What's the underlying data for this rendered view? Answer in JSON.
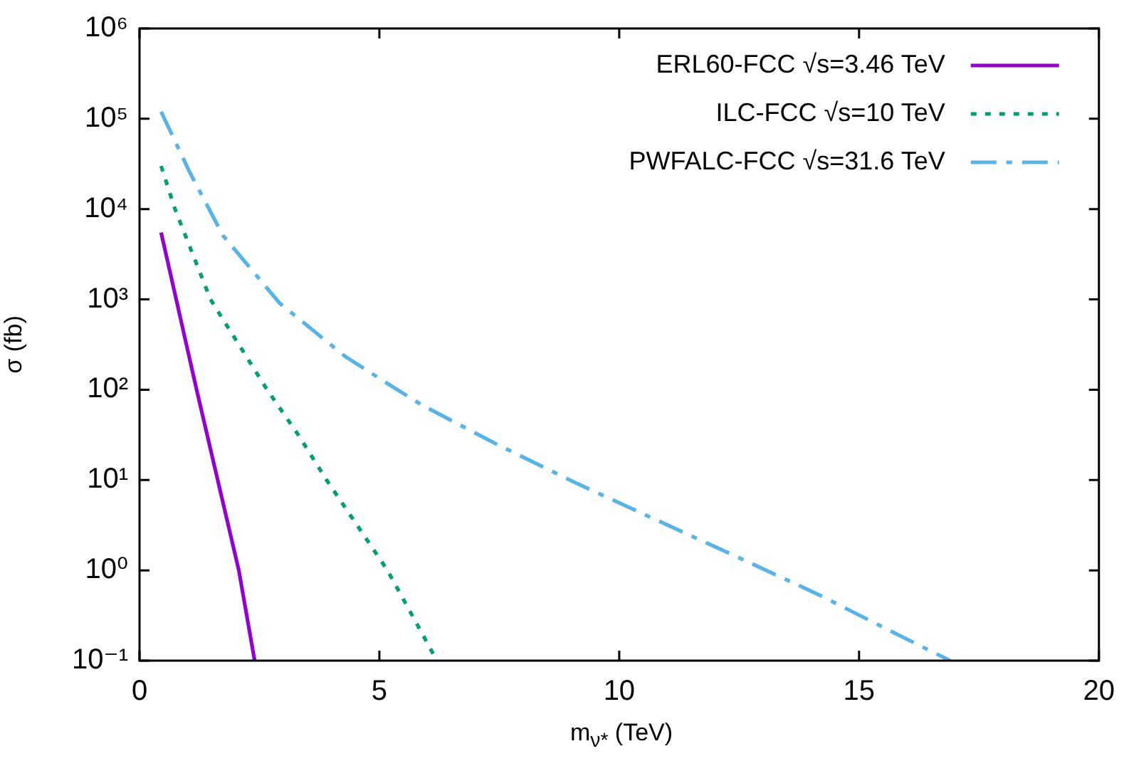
{
  "chart_data": {
    "type": "line",
    "xlabel": "m$_{ν*}$ (TeV)",
    "ylabel": "σ (fb)",
    "xlim": [
      0,
      20
    ],
    "xticks": [
      0,
      5,
      10,
      15,
      20
    ],
    "ylim": [
      0.1,
      1000000
    ],
    "yticks": [
      {
        "value": 0.1,
        "label": "10⁻¹"
      },
      {
        "value": 1,
        "label": "10⁰"
      },
      {
        "value": 10,
        "label": "10¹"
      },
      {
        "value": 100,
        "label": "10²"
      },
      {
        "value": 1000,
        "label": "10³"
      },
      {
        "value": 10000,
        "label": "10⁴"
      },
      {
        "value": 100000,
        "label": "10⁵"
      },
      {
        "value": 1000000,
        "label": "10⁶"
      }
    ],
    "log": "y",
    "grid": false,
    "legend": "top right",
    "marker": "none",
    "series": [
      {
        "name": "ERL60-FCC √s=3.46 TeV",
        "color": "#9400d3",
        "line_style": "solid",
        "x": [
          0.45,
          1.19,
          1.63,
          2.07,
          2.4
        ],
        "values": [
          5500,
          100,
          10,
          1,
          0.1
        ]
      },
      {
        "name": "ILC-FCC √s=10 TeV",
        "color": "#009e73",
        "line_style": "dotted",
        "x": [
          0.45,
          0.74,
          1.48,
          2.66,
          3.31,
          3.9,
          5.17,
          6.2
        ],
        "values": [
          30000,
          10000,
          1000,
          100,
          31.6,
          10,
          1,
          0.1
        ]
      },
      {
        "name": "PWFALC-FCC √s=31.6 TeV",
        "color": "#56b4e9",
        "line_style": "dashed",
        "x": [
          0.45,
          1.04,
          1.74,
          2.92,
          4.28,
          5.17,
          5.88,
          7.44,
          9.13,
          10.78,
          12.47,
          14.15,
          15.8,
          16.9
        ],
        "values": [
          120000,
          26000,
          5100,
          910,
          235,
          117,
          68,
          25,
          9.1,
          3.6,
          1.4,
          0.54,
          0.195,
          0.1
        ]
      }
    ]
  }
}
